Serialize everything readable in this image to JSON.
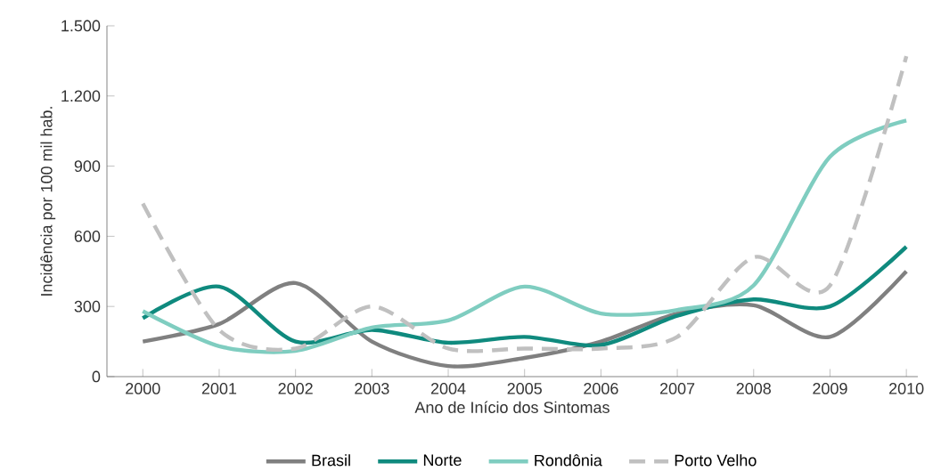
{
  "chart_data": {
    "type": "line",
    "xlabel": "Ano de Início dos Sintomas",
    "ylabel": "Incidência por 100 mil hab.",
    "categories": [
      "2000",
      "2001",
      "2002",
      "2003",
      "2004",
      "2005",
      "2006",
      "2007",
      "2008",
      "2009",
      "2010"
    ],
    "series": [
      {
        "name": "Brasil",
        "color": "#808080",
        "line_style": "solid",
        "values": [
          150,
          225,
          400,
          150,
          45,
          80,
          150,
          270,
          305,
          170,
          450
        ]
      },
      {
        "name": "Norte",
        "color": "#0f8a7e",
        "line_style": "solid",
        "values": [
          250,
          385,
          150,
          200,
          145,
          170,
          135,
          260,
          330,
          300,
          555
        ]
      },
      {
        "name": "Rondônia",
        "color": "#7fcdc0",
        "line_style": "solid",
        "values": [
          280,
          130,
          110,
          210,
          240,
          385,
          270,
          285,
          390,
          940,
          1095
        ]
      },
      {
        "name": "Porto Velho",
        "color": "#c0c0c0",
        "line_style": "dashed",
        "values": [
          740,
          200,
          120,
          300,
          120,
          120,
          120,
          170,
          510,
          390,
          1370
        ]
      }
    ],
    "ylim": [
      0,
      1500
    ],
    "yticks": [
      {
        "value": 0,
        "label": "0"
      },
      {
        "value": 300,
        "label": "300"
      },
      {
        "value": 600,
        "label": "600"
      },
      {
        "value": 900,
        "label": "900"
      },
      {
        "value": 1200,
        "label": "1.200"
      },
      {
        "value": 1500,
        "label": "1.500"
      }
    ],
    "legend": "bottom"
  }
}
